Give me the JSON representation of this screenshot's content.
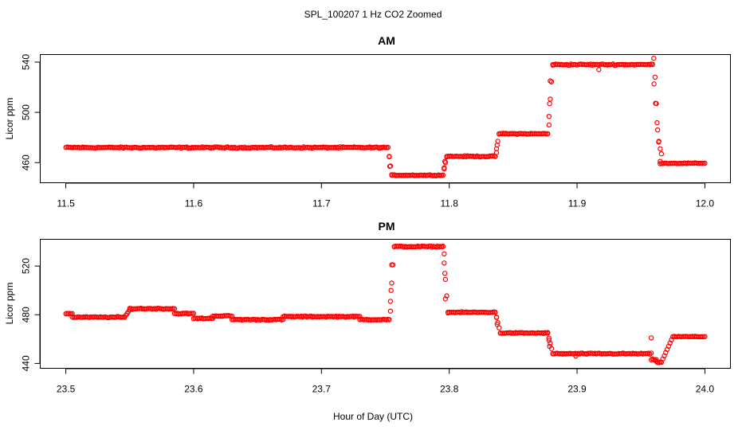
{
  "figure": {
    "title": "SPL_100207  1 Hz CO2 Zoomed",
    "xlabel": "Hour of Day (UTC)"
  },
  "chart_data": [
    {
      "type": "scatter",
      "title": "AM",
      "xlabel": "",
      "ylabel": "Licor ppm",
      "xlim": [
        11.48,
        12.02
      ],
      "ylim": [
        444,
        546
      ],
      "xticks": [
        "11.5",
        "11.6",
        "11.7",
        "11.8",
        "11.9",
        "12.0"
      ],
      "yticks": [
        "460",
        "500",
        "540"
      ],
      "grid": false,
      "point_color": "#ff0000",
      "marker": "open-circle",
      "segments": [
        {
          "x_start": 11.5,
          "x_end": 11.752,
          "y": 472,
          "noise": 1.0
        },
        {
          "x_start": 11.752,
          "x_end": 11.755,
          "y_from": 472,
          "y_to": 450
        },
        {
          "x_start": 11.755,
          "x_end": 11.795,
          "y": 450,
          "noise": 0.7
        },
        {
          "x_start": 11.795,
          "x_end": 11.798,
          "y_from": 450,
          "y_to": 465
        },
        {
          "x_start": 11.798,
          "x_end": 11.836,
          "y": 465,
          "noise": 0.8
        },
        {
          "x_start": 11.836,
          "x_end": 11.839,
          "y_from": 465,
          "y_to": 483
        },
        {
          "x_start": 11.839,
          "x_end": 11.877,
          "y": 483,
          "noise": 0.8
        },
        {
          "x_start": 11.877,
          "x_end": 11.881,
          "y_from": 483,
          "y_to": 538
        },
        {
          "x_start": 11.881,
          "x_end": 11.959,
          "y": 538,
          "noise": 1.0
        },
        {
          "x_start": 11.959,
          "x_end": 11.965,
          "y_from": 538,
          "y_to": 461
        },
        {
          "x_start": 11.965,
          "x_end": 12.0,
          "y": 459.5,
          "noise": 0.6
        }
      ],
      "outliers": [
        {
          "x": 11.917,
          "y": 534
        },
        {
          "x": 11.96,
          "y": 543
        },
        {
          "x": 11.961,
          "y": 528
        },
        {
          "x": 11.962,
          "y": 507
        },
        {
          "x": 11.963,
          "y": 486
        },
        {
          "x": 11.964,
          "y": 477
        },
        {
          "x": 11.965,
          "y": 471
        },
        {
          "x": 11.966,
          "y": 467
        },
        {
          "x": 11.753,
          "y": 465
        },
        {
          "x": 11.7535,
          "y": 457
        },
        {
          "x": 11.796,
          "y": 456
        },
        {
          "x": 11.7965,
          "y": 461
        },
        {
          "x": 11.837,
          "y": 468
        },
        {
          "x": 11.8375,
          "y": 474
        },
        {
          "x": 11.878,
          "y": 490
        },
        {
          "x": 11.8785,
          "y": 507
        },
        {
          "x": 11.879,
          "y": 525
        }
      ]
    },
    {
      "type": "scatter",
      "title": "PM",
      "xlabel": "",
      "ylabel": "Licor ppm",
      "xlim": [
        23.48,
        24.02
      ],
      "ylim": [
        436,
        542
      ],
      "xticks": [
        "23.5",
        "23.6",
        "23.7",
        "23.8",
        "23.9",
        "24.0"
      ],
      "yticks": [
        "440",
        "480",
        "520"
      ],
      "grid": false,
      "point_color": "#ff0000",
      "marker": "open-circle",
      "segments": [
        {
          "x_start": 23.5,
          "x_end": 23.505,
          "y": 481,
          "noise": 0.6
        },
        {
          "x_start": 23.505,
          "x_end": 23.546,
          "y": 478,
          "noise": 0.8
        },
        {
          "x_start": 23.546,
          "x_end": 23.55,
          "y_from": 478,
          "y_to": 484
        },
        {
          "x_start": 23.55,
          "x_end": 23.585,
          "y": 485,
          "noise": 0.9
        },
        {
          "x_start": 23.585,
          "x_end": 23.6,
          "y": 481,
          "noise": 0.8
        },
        {
          "x_start": 23.6,
          "x_end": 23.615,
          "y": 477,
          "noise": 0.9
        },
        {
          "x_start": 23.615,
          "x_end": 23.63,
          "y": 479,
          "noise": 0.8
        },
        {
          "x_start": 23.63,
          "x_end": 23.67,
          "y": 476,
          "noise": 0.8
        },
        {
          "x_start": 23.67,
          "x_end": 23.73,
          "y": 478.5,
          "noise": 0.8
        },
        {
          "x_start": 23.73,
          "x_end": 23.753,
          "y": 476,
          "noise": 0.8
        },
        {
          "x_start": 23.753,
          "x_end": 23.757,
          "y_from": 476,
          "y_to": 536
        },
        {
          "x_start": 23.757,
          "x_end": 23.795,
          "y": 536,
          "noise": 0.9
        },
        {
          "x_start": 23.795,
          "x_end": 23.799,
          "y_from": 536,
          "y_to": 482
        },
        {
          "x_start": 23.799,
          "x_end": 23.836,
          "y": 482,
          "noise": 0.8
        },
        {
          "x_start": 23.836,
          "x_end": 23.84,
          "y_from": 482,
          "y_to": 465
        },
        {
          "x_start": 23.84,
          "x_end": 23.877,
          "y": 465,
          "noise": 0.8
        },
        {
          "x_start": 23.877,
          "x_end": 23.881,
          "y_from": 465,
          "y_to": 448
        },
        {
          "x_start": 23.881,
          "x_end": 23.958,
          "y": 448,
          "noise": 0.9
        },
        {
          "x_start": 23.958,
          "x_end": 23.962,
          "y": 443,
          "noise": 1.2
        },
        {
          "x_start": 23.962,
          "x_end": 23.966,
          "y": 441,
          "noise": 1.0
        },
        {
          "x_start": 23.966,
          "x_end": 23.975,
          "y_from": 441,
          "y_to": 462
        },
        {
          "x_start": 23.975,
          "x_end": 24.0,
          "y": 462,
          "noise": 0.6
        }
      ],
      "outliers": [
        {
          "x": 23.754,
          "y": 483
        },
        {
          "x": 23.7545,
          "y": 500
        },
        {
          "x": 23.755,
          "y": 521
        },
        {
          "x": 23.796,
          "y": 530
        },
        {
          "x": 23.7965,
          "y": 514
        },
        {
          "x": 23.797,
          "y": 493
        },
        {
          "x": 23.837,
          "y": 478
        },
        {
          "x": 23.8375,
          "y": 472
        },
        {
          "x": 23.878,
          "y": 459
        },
        {
          "x": 23.8785,
          "y": 454
        },
        {
          "x": 23.958,
          "y": 461
        },
        {
          "x": 23.899,
          "y": 446
        }
      ]
    }
  ]
}
